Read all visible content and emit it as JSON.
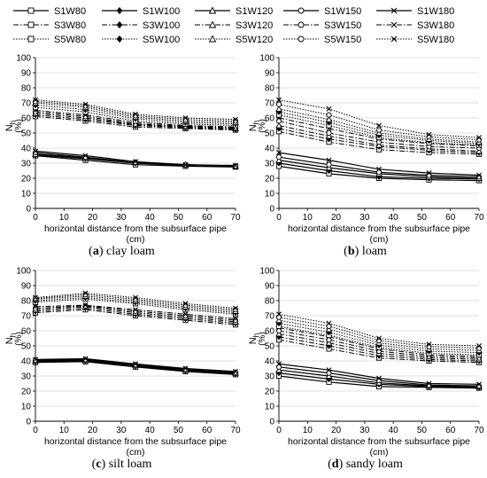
{
  "legend": {
    "rows": [
      [
        "S1W80",
        "S1W100",
        "S1W120",
        "S1W150",
        "S1W180"
      ],
      [
        "S3W80",
        "S3W100",
        "S3W120",
        "S3W150",
        "S3W180"
      ],
      [
        "S5W80",
        "S5W100",
        "S5W120",
        "S5W150",
        "S5W180"
      ]
    ],
    "line_styles": {
      "S1": "solid",
      "S3": "dash-dot",
      "S5": "dotted"
    },
    "marker_by_W": {
      "W80": "square",
      "W100": "diamond",
      "W120": "triangle",
      "W150": "circle",
      "W180": "x"
    }
  },
  "common": {
    "xlabel_line1": "horizontal distance from the subsurface pipe",
    "xlabel_line2": "(cm)",
    "ylabel_main": "N",
    "ylabel_sub": "h",
    "ylabel_unit": "(%)",
    "xticks": [
      0,
      10,
      20,
      30,
      40,
      50,
      60,
      70
    ],
    "yticks": [
      0,
      10,
      20,
      30,
      40,
      50,
      60,
      70,
      80,
      90,
      100
    ],
    "xlim": [
      0,
      70
    ],
    "ylim": [
      0,
      100
    ],
    "x": [
      0,
      17.5,
      35,
      52.5,
      70
    ]
  },
  "panels": [
    {
      "letter": "a",
      "name": "clay loam",
      "caption_open": "(",
      "caption_close": ") "
    },
    {
      "letter": "b",
      "name": "loam",
      "caption_open": "(",
      "caption_close": ") "
    },
    {
      "letter": "c",
      "name": "silt loam",
      "caption_open": "(",
      "caption_close": ") "
    },
    {
      "letter": "d",
      "name": "sandy loam",
      "caption_open": "(",
      "caption_close": ") "
    }
  ],
  "chart_data": [
    {
      "type": "line",
      "x": [
        0,
        17.5,
        35,
        52.5,
        70
      ],
      "xlim": [
        0,
        70
      ],
      "ylim": [
        0,
        100
      ],
      "series": [
        {
          "name": "S1W80",
          "values": [
            35,
            32,
            29,
            28,
            27.5
          ]
        },
        {
          "name": "S1W100",
          "values": [
            35.5,
            33,
            30,
            28.5,
            28
          ]
        },
        {
          "name": "S1W120",
          "values": [
            36,
            33.5,
            30.5,
            29,
            28
          ]
        },
        {
          "name": "S1W150",
          "values": [
            37,
            34,
            30.5,
            29,
            28
          ]
        },
        {
          "name": "S1W180",
          "values": [
            38,
            35,
            31,
            29,
            28.5
          ]
        },
        {
          "name": "S3W80",
          "values": [
            61,
            58,
            54,
            53,
            52
          ]
        },
        {
          "name": "S3W100",
          "values": [
            62,
            59,
            55,
            53.5,
            52.5
          ]
        },
        {
          "name": "S3W120",
          "values": [
            63,
            60,
            55.5,
            54,
            53
          ]
        },
        {
          "name": "S3W150",
          "values": [
            64,
            61,
            56,
            54.5,
            53.5
          ]
        },
        {
          "name": "S3W180",
          "values": [
            65,
            62,
            57,
            55,
            54
          ]
        },
        {
          "name": "S5W80",
          "values": [
            67,
            64,
            58,
            56,
            55
          ]
        },
        {
          "name": "S5W100",
          "values": [
            68.5,
            65.5,
            59.5,
            57,
            56
          ]
        },
        {
          "name": "S5W120",
          "values": [
            70,
            67,
            60.5,
            58,
            57
          ]
        },
        {
          "name": "S5W150",
          "values": [
            71,
            68,
            61.5,
            59,
            58
          ]
        },
        {
          "name": "S5W180",
          "values": [
            72,
            69,
            62.5,
            60,
            59
          ]
        }
      ]
    },
    {
      "type": "line",
      "x": [
        0,
        17.5,
        35,
        52.5,
        70
      ],
      "xlim": [
        0,
        70
      ],
      "ylim": [
        0,
        100
      ],
      "series": [
        {
          "name": "S1W80",
          "values": [
            28,
            23,
            20,
            19,
            18.5
          ]
        },
        {
          "name": "S1W100",
          "values": [
            30,
            25,
            21,
            20,
            19.5
          ]
        },
        {
          "name": "S1W120",
          "values": [
            32,
            27,
            23,
            21,
            20
          ]
        },
        {
          "name": "S1W150",
          "values": [
            34,
            29,
            24,
            22,
            21
          ]
        },
        {
          "name": "S1W180",
          "values": [
            37,
            32,
            26,
            23.5,
            22
          ]
        },
        {
          "name": "S3W80",
          "values": [
            51,
            44,
            39,
            37,
            36
          ]
        },
        {
          "name": "S3W100",
          "values": [
            53,
            46,
            41,
            38.5,
            37
          ]
        },
        {
          "name": "S3W120",
          "values": [
            55,
            48,
            42,
            39.5,
            38
          ]
        },
        {
          "name": "S3W150",
          "values": [
            58,
            50,
            44,
            41,
            40
          ]
        },
        {
          "name": "S3W180",
          "values": [
            60,
            53,
            46,
            43,
            41.5
          ]
        },
        {
          "name": "S5W80",
          "values": [
            62,
            55,
            47,
            43.5,
            42
          ]
        },
        {
          "name": "S5W100",
          "values": [
            64,
            57,
            48.5,
            45,
            43
          ]
        },
        {
          "name": "S5W120",
          "values": [
            66,
            59,
            50,
            46,
            44
          ]
        },
        {
          "name": "S5W150",
          "values": [
            69,
            62,
            52,
            47.5,
            45.5
          ]
        },
        {
          "name": "S5W180",
          "values": [
            72,
            66,
            55,
            49,
            47
          ]
        }
      ]
    },
    {
      "type": "line",
      "x": [
        0,
        17.5,
        35,
        52.5,
        70
      ],
      "xlim": [
        0,
        70
      ],
      "ylim": [
        0,
        100
      ],
      "series": [
        {
          "name": "S1W80",
          "values": [
            39,
            39.5,
            36,
            33,
            31
          ]
        },
        {
          "name": "S1W100",
          "values": [
            39.5,
            40,
            36.5,
            33.5,
            31.5
          ]
        },
        {
          "name": "S1W120",
          "values": [
            40,
            40.5,
            37,
            34,
            32
          ]
        },
        {
          "name": "S1W150",
          "values": [
            40.5,
            41,
            37.5,
            34.5,
            32.5
          ]
        },
        {
          "name": "S1W180",
          "values": [
            41,
            41.5,
            38,
            35,
            33
          ]
        },
        {
          "name": "S3W80",
          "values": [
            72,
            74,
            70,
            67,
            64
          ]
        },
        {
          "name": "S3W100",
          "values": [
            73,
            75,
            71,
            68,
            65
          ]
        },
        {
          "name": "S3W120",
          "values": [
            74,
            76,
            72,
            69,
            66
          ]
        },
        {
          "name": "S3W150",
          "values": [
            75,
            76.5,
            73,
            70,
            67
          ]
        },
        {
          "name": "S3W180",
          "values": [
            76,
            77,
            74,
            71,
            68
          ]
        },
        {
          "name": "S5W80",
          "values": [
            79,
            81,
            78,
            74,
            71
          ]
        },
        {
          "name": "S5W100",
          "values": [
            80,
            82,
            79,
            75,
            72
          ]
        },
        {
          "name": "S5W120",
          "values": [
            81,
            83,
            80,
            76,
            73
          ]
        },
        {
          "name": "S5W150",
          "values": [
            81.5,
            84,
            81,
            77,
            74
          ]
        },
        {
          "name": "S5W180",
          "values": [
            82,
            85,
            82,
            78,
            75
          ]
        }
      ]
    },
    {
      "type": "line",
      "x": [
        0,
        17.5,
        35,
        52.5,
        70
      ],
      "xlim": [
        0,
        70
      ],
      "ylim": [
        0,
        100
      ],
      "series": [
        {
          "name": "S1W80",
          "values": [
            30,
            26,
            23,
            22.5,
            22
          ]
        },
        {
          "name": "S1W100",
          "values": [
            32,
            28,
            24.5,
            23,
            22.5
          ]
        },
        {
          "name": "S1W120",
          "values": [
            34,
            30,
            25.5,
            23.5,
            23
          ]
        },
        {
          "name": "S1W150",
          "values": [
            36,
            32,
            27,
            24,
            23.5
          ]
        },
        {
          "name": "S1W180",
          "values": [
            38,
            34,
            28.5,
            25,
            24.5
          ]
        },
        {
          "name": "S3W80",
          "values": [
            54,
            48,
            42,
            40,
            39
          ]
        },
        {
          "name": "S3W100",
          "values": [
            56,
            50,
            43.5,
            41,
            40
          ]
        },
        {
          "name": "S3W120",
          "values": [
            58,
            52,
            45,
            42,
            41
          ]
        },
        {
          "name": "S3W150",
          "values": [
            60,
            54,
            46.5,
            43,
            42
          ]
        },
        {
          "name": "S3W180",
          "values": [
            62,
            56,
            48,
            44,
            43
          ]
        },
        {
          "name": "S5W80",
          "values": [
            63,
            57,
            49,
            45,
            44
          ]
        },
        {
          "name": "S5W100",
          "values": [
            65,
            59,
            50.5,
            46.5,
            45.5
          ]
        },
        {
          "name": "S5W120",
          "values": [
            67,
            61,
            52,
            48,
            47
          ]
        },
        {
          "name": "S5W150",
          "values": [
            69,
            63,
            53.5,
            49.5,
            48.5
          ]
        },
        {
          "name": "S5W180",
          "values": [
            71,
            65,
            55,
            51,
            50
          ]
        }
      ]
    }
  ]
}
